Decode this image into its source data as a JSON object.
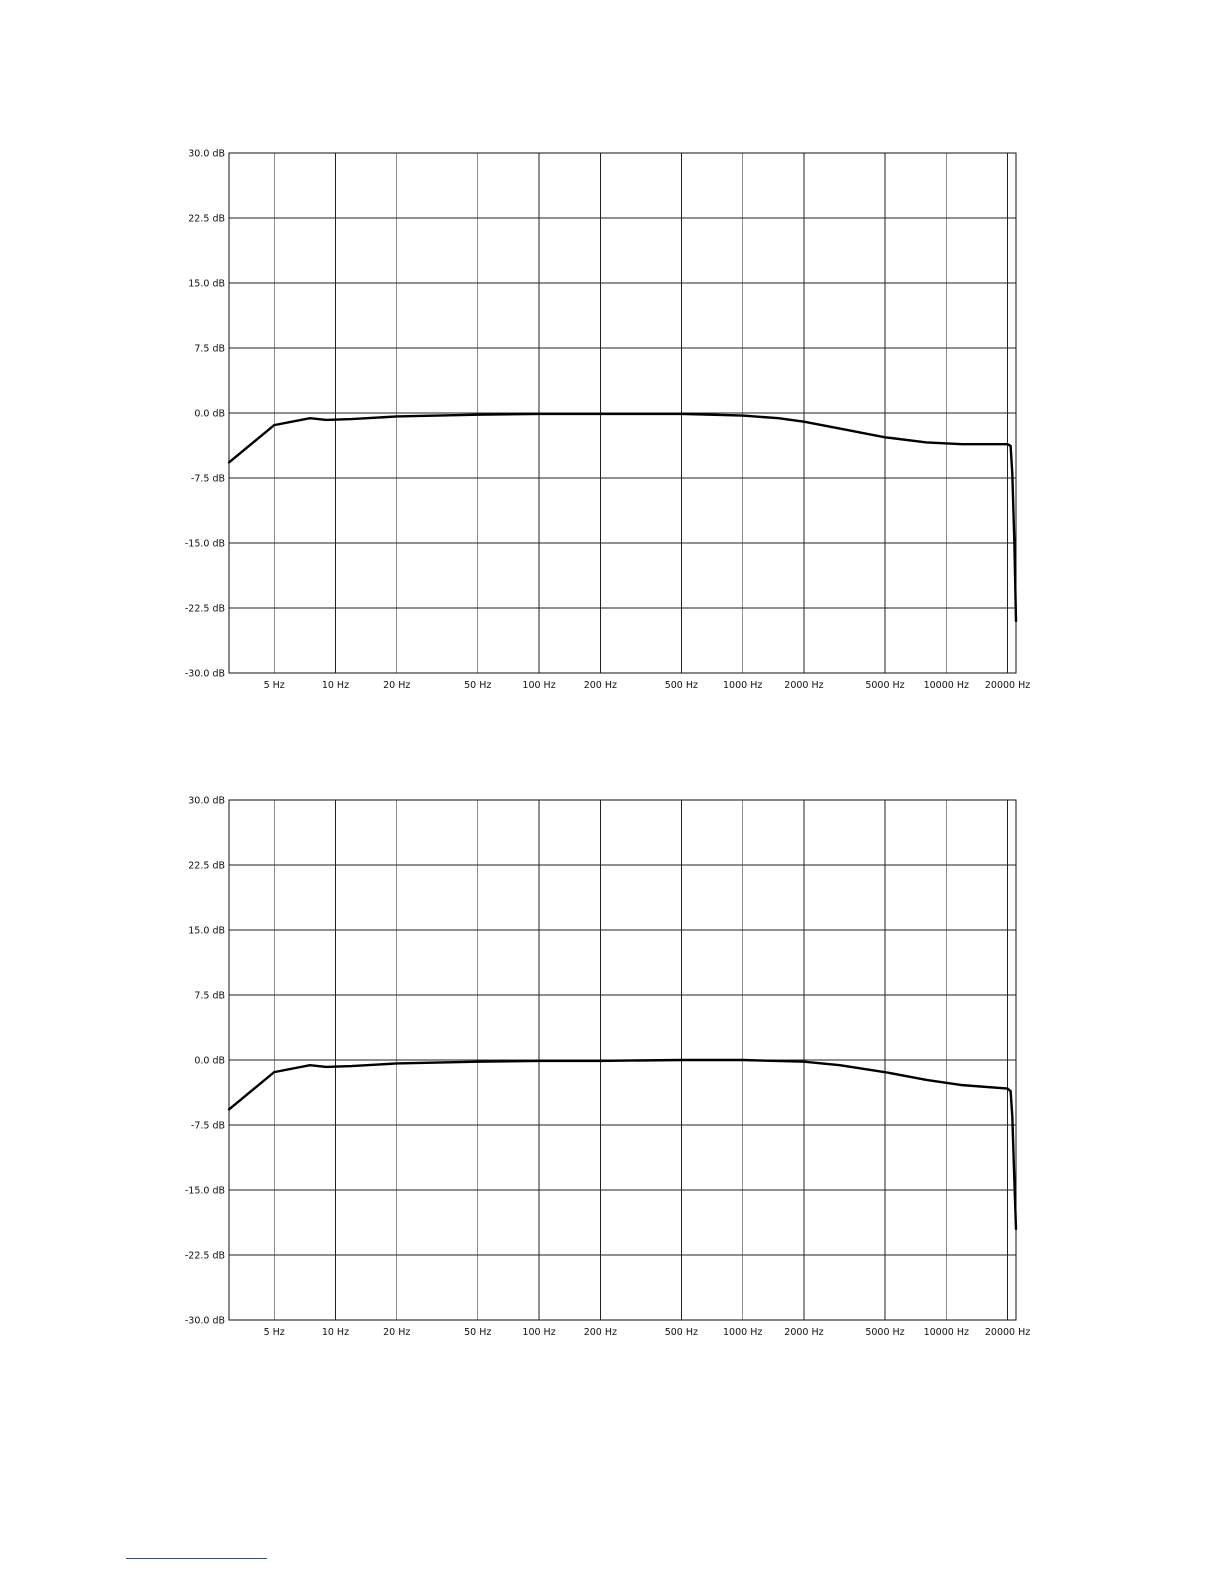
{
  "chart_data": [
    {
      "type": "line",
      "x_scale": "log",
      "xlim": [
        3,
        22000
      ],
      "ylim": [
        -30,
        30
      ],
      "y_ticks": [
        30,
        22.5,
        15,
        7.5,
        0,
        -7.5,
        -15,
        -22.5,
        -30
      ],
      "y_tick_labels": [
        "30.0 dB",
        "22.5 dB",
        "15.0 dB",
        "7.5 dB",
        "0.0 dB",
        "-7.5 dB",
        "-15.0 dB",
        "-22.5 dB",
        "-30.0 dB"
      ],
      "x_ticks": [
        5,
        10,
        20,
        50,
        100,
        200,
        500,
        1000,
        2000,
        5000,
        10000,
        20000
      ],
      "x_tick_labels": [
        "5 Hz",
        "10 Hz",
        "20 Hz",
        "50 Hz",
        "100 Hz",
        "200 Hz",
        "500 Hz",
        "1000 Hz",
        "2000 Hz",
        "5000 Hz",
        "10000 Hz",
        "20000 Hz"
      ],
      "grid": true,
      "series": [
        {
          "x": [
            3,
            5,
            7.5,
            9,
            12,
            20,
            50,
            100,
            200,
            500,
            1000,
            1500,
            2000,
            3000,
            5000,
            8000,
            12000,
            20000,
            20700,
            21100,
            21600,
            22000
          ],
          "y": [
            -5.7,
            -1.4,
            -0.6,
            -0.8,
            -0.7,
            -0.4,
            -0.2,
            -0.1,
            -0.1,
            -0.1,
            -0.3,
            -0.6,
            -1.0,
            -1.8,
            -2.8,
            -3.4,
            -3.6,
            -3.6,
            -3.8,
            -7.0,
            -15.0,
            -24.0
          ]
        }
      ]
    },
    {
      "type": "line",
      "x_scale": "log",
      "xlim": [
        3,
        22000
      ],
      "ylim": [
        -30,
        30
      ],
      "y_ticks": [
        30,
        22.5,
        15,
        7.5,
        0,
        -7.5,
        -15,
        -22.5,
        -30
      ],
      "y_tick_labels": [
        "30.0 dB",
        "22.5 dB",
        "15.0 dB",
        "7.5 dB",
        "0.0 dB",
        "-7.5 dB",
        "-15.0 dB",
        "-22.5 dB",
        "-30.0 dB"
      ],
      "x_ticks": [
        5,
        10,
        20,
        50,
        100,
        200,
        500,
        1000,
        2000,
        5000,
        10000,
        20000
      ],
      "x_tick_labels": [
        "5 Hz",
        "10 Hz",
        "20 Hz",
        "50 Hz",
        "100 Hz",
        "200 Hz",
        "500 Hz",
        "1000 Hz",
        "2000 Hz",
        "5000 Hz",
        "10000 Hz",
        "20000 Hz"
      ],
      "grid": true,
      "series": [
        {
          "x": [
            3,
            5,
            7.5,
            9,
            12,
            20,
            50,
            100,
            200,
            500,
            1000,
            2000,
            3000,
            5000,
            8000,
            12000,
            20000,
            20700,
            21100,
            21600,
            22000
          ],
          "y": [
            -5.7,
            -1.4,
            -0.6,
            -0.8,
            -0.7,
            -0.4,
            -0.2,
            -0.1,
            -0.1,
            0.0,
            0.0,
            -0.2,
            -0.6,
            -1.4,
            -2.3,
            -2.9,
            -3.3,
            -3.6,
            -6.5,
            -14.0,
            -19.5
          ]
        }
      ]
    }
  ]
}
